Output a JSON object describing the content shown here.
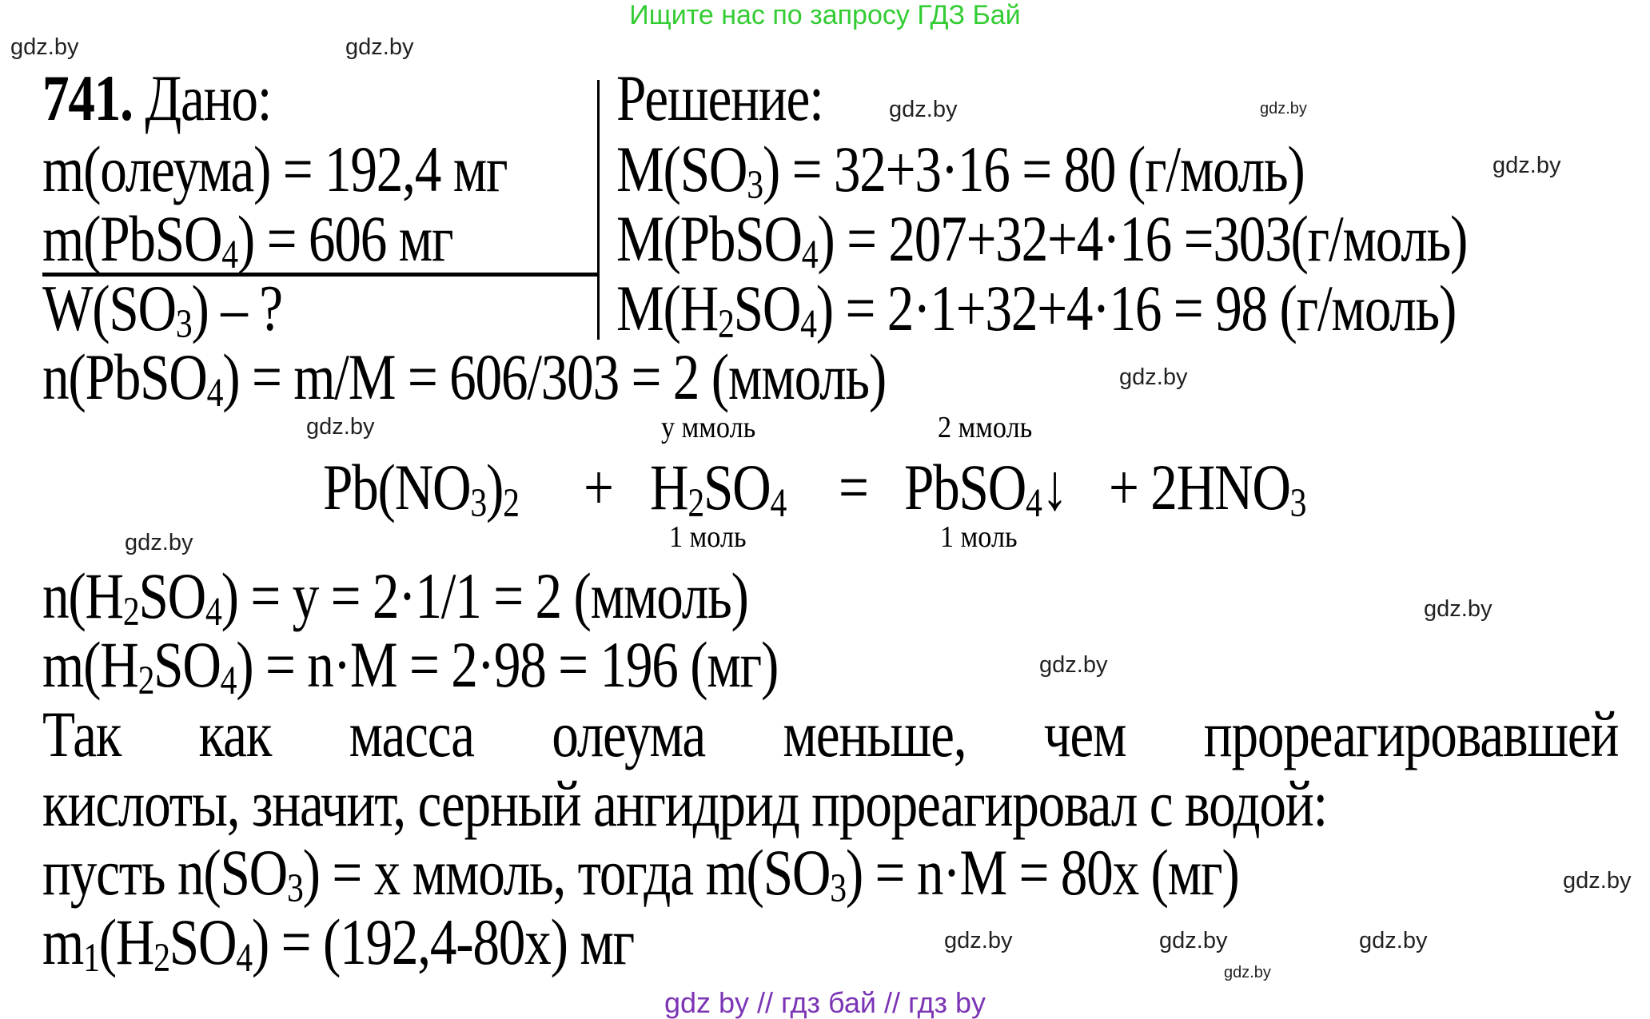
{
  "header": {
    "text": "Ищите нас по запросу ГДЗ Бай",
    "color": "#33cc33"
  },
  "footer": {
    "text": "gdz by  //  гдз бай  //  гдз by",
    "color": "#7b35b5"
  },
  "given": [
    [
      {
        "t": "741.",
        "b": true
      },
      {
        "t": " Дано:"
      }
    ],
    [
      {
        "t": "m(олеума) = 192,4 мг"
      }
    ],
    [
      {
        "t": "m(PbSO"
      },
      {
        "t": "4",
        "s": true
      },
      {
        "t": ") = 606 мг"
      }
    ],
    [
      {
        "t": "W(SO"
      },
      {
        "t": "3",
        "s": true
      },
      {
        "t": ") – ?"
      }
    ]
  ],
  "solution": [
    [
      {
        "t": "Решение:"
      }
    ],
    [
      {
        "t": "M(SO"
      },
      {
        "t": "3",
        "s": true
      },
      {
        "t": ") = 32+3·16 = 80 (г/моль)"
      }
    ],
    [
      {
        "t": "M(PbSO"
      },
      {
        "t": "4",
        "s": true
      },
      {
        "t": ") = 207+32+4·16 =303(г/моль)"
      }
    ],
    [
      {
        "t": "M(H"
      },
      {
        "t": "2",
        "s": true
      },
      {
        "t": "SO"
      },
      {
        "t": "4",
        "s": true
      },
      {
        "t": ") = 2·1+32+4·16 = 98 (г/моль)"
      }
    ]
  ],
  "body": [
    [
      {
        "t": "n(PbSO"
      },
      {
        "t": "4",
        "s": true
      },
      {
        "t": ") = m/M = 606/303 = 2 (ммоль)"
      }
    ],
    [
      {
        "t": "n(H"
      },
      {
        "t": "2",
        "s": true
      },
      {
        "t": "SO"
      },
      {
        "t": "4",
        "s": true
      },
      {
        "t": ") = y = 2·1/1 = 2 (ммоль)"
      }
    ],
    [
      {
        "t": "m(H"
      },
      {
        "t": "2",
        "s": true
      },
      {
        "t": "SO"
      },
      {
        "t": "4",
        "s": true
      },
      {
        "t": ") = n·M = 2·98 = 196 (мг)"
      }
    ],
    [
      {
        "t": "Так как масса олеума меньше, чем прореагировавшей"
      }
    ],
    [
      {
        "t": "кислоты, значит, серный ангидрид прореагировал с водой:"
      }
    ],
    [
      {
        "t": "пусть n(SO"
      },
      {
        "t": "3",
        "s": true
      },
      {
        "t": ") = x ммоль, тогда m(SO"
      },
      {
        "t": "3",
        "s": true
      },
      {
        "t": ") = n·M = 80x (мг)"
      }
    ],
    [
      {
        "t": "m"
      },
      {
        "t": "1",
        "s": true
      },
      {
        "t": "(H"
      },
      {
        "t": "2",
        "s": true
      },
      {
        "t": "SO"
      },
      {
        "t": "4",
        "s": true
      },
      {
        "t": ") = (192,4-80x) мг"
      }
    ]
  ],
  "equation": {
    "terms": [
      [
        {
          "t": "Pb(NO"
        },
        {
          "t": "3",
          "s": true
        },
        {
          "t": ")"
        },
        {
          "t": "2",
          "s": true
        }
      ],
      [
        {
          "t": "+"
        }
      ],
      [
        {
          "t": "H"
        },
        {
          "t": "2",
          "s": true
        },
        {
          "t": "SO"
        },
        {
          "t": "4",
          "s": true
        }
      ],
      [
        {
          "t": "="
        }
      ],
      [
        {
          "t": "PbSO"
        },
        {
          "t": "4",
          "s": true
        },
        {
          "t": "↓"
        }
      ],
      [
        {
          "t": "+ 2HNO"
        },
        {
          "t": "3",
          "s": true
        }
      ]
    ],
    "above": [
      "у ммоль",
      "2 ммоль"
    ],
    "below": [
      "1 моль",
      "1 моль"
    ]
  },
  "watermark": "gdz.by"
}
